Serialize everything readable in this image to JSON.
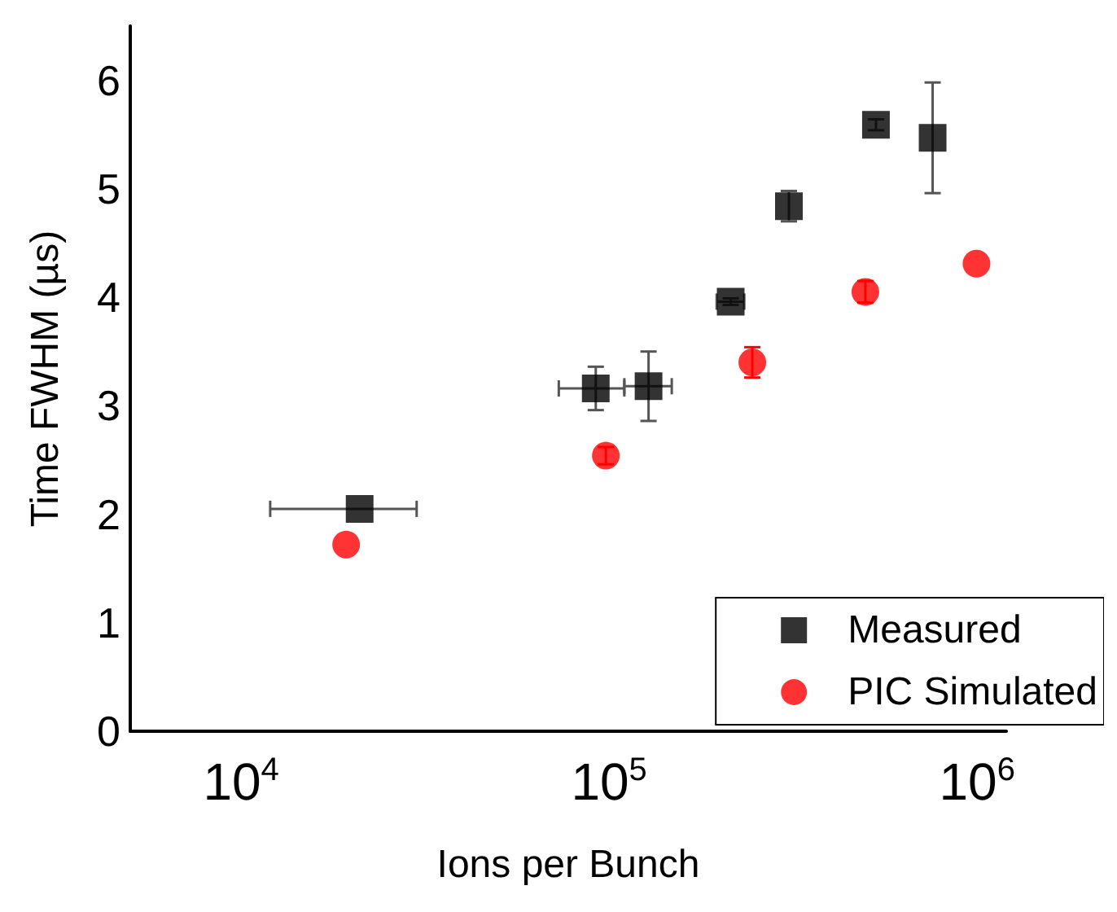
{
  "chart_data": {
    "type": "scatter",
    "xlabel": "Ions per Bunch",
    "ylabel": "Time FWHM (µs)",
    "log": "x",
    "grid": false,
    "legend": "bottom right",
    "xlim": [
      5000,
      1200000
    ],
    "xticks": [
      {
        "value": 10000,
        "label": "10$^{4}$"
      },
      {
        "value": 100000,
        "label": "10$^{5}$"
      },
      {
        "value": 1000000,
        "label": "10$^{6}$"
      }
    ],
    "ylim": [
      0,
      6.5
    ],
    "yticks": [
      0,
      1,
      2,
      3,
      4,
      5,
      6
    ],
    "series": [
      {
        "name": "Measured",
        "color": "#000000",
        "marker": "square",
        "x": [
          21000,
          92000,
          128000,
          214000,
          308000,
          531000,
          757000
        ],
        "values": [
          2.05,
          3.16,
          3.18,
          3.96,
          4.84,
          5.59,
          5.47
        ],
        "errors": [
          null,
          0.2,
          0.32,
          0.03,
          0.14,
          0.05,
          0.51
        ],
        "xerrors": [
          [
            12000,
            30000
          ],
          [
            73000,
            110000
          ],
          [
            110000,
            148000
          ],
          [
            196000,
            233000
          ],
          null,
          null,
          null
        ]
      },
      {
        "name": "PIC Simulated",
        "color": "#ff0000",
        "marker": "circle",
        "x": [
          19300,
          98000,
          245000,
          497000,
          996000
        ],
        "values": [
          1.72,
          2.54,
          3.4,
          4.05,
          4.31
        ],
        "errors": [
          null,
          0.08,
          0.14,
          0.1,
          null
        ]
      }
    ]
  }
}
